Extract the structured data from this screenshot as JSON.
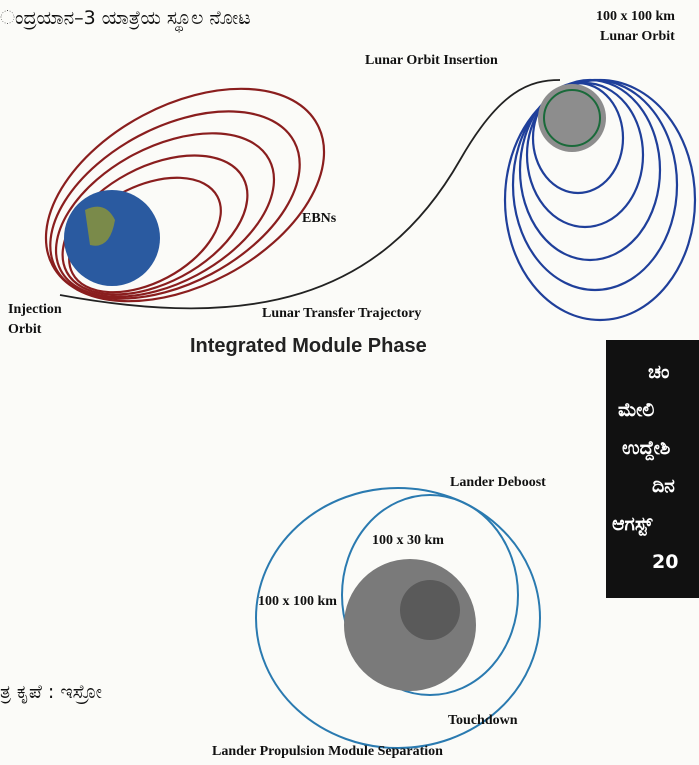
{
  "header": {
    "title": "ಂದ್ರಯಾನ–3 ಯಾತ್ರೆಯ ಸ್ಥೂಲ ನೋಟ"
  },
  "phase1": {
    "lunar_orbit_size": "100 x 100 km",
    "lunar_orbit": "Lunar Orbit",
    "insertion": "Lunar Orbit Insertion",
    "ebns": "EBNs",
    "injection": [
      "Injection",
      "Orbit"
    ],
    "transfer": "Lunar Transfer Trajectory",
    "phase": "Integrated Module Phase"
  },
  "box": {
    "lines": [
      "ಚಂ",
      "ಮೇಲಿ",
      "ಉದ್ದೇಶಿ",
      "ದಿನ",
      "ಆಗಸ್ಟ್",
      "20"
    ]
  },
  "phase2": {
    "deboost": "Lander Deboost",
    "orbit_30": "100 x 30 km",
    "orbit_100": "100 x 100 km",
    "touchdown": "Touchdown",
    "separation": "Lander Propulsion Module Separation"
  },
  "credit": "ತ್ರ ಕೃಪೆ : ಇಸ್ರೋ"
}
